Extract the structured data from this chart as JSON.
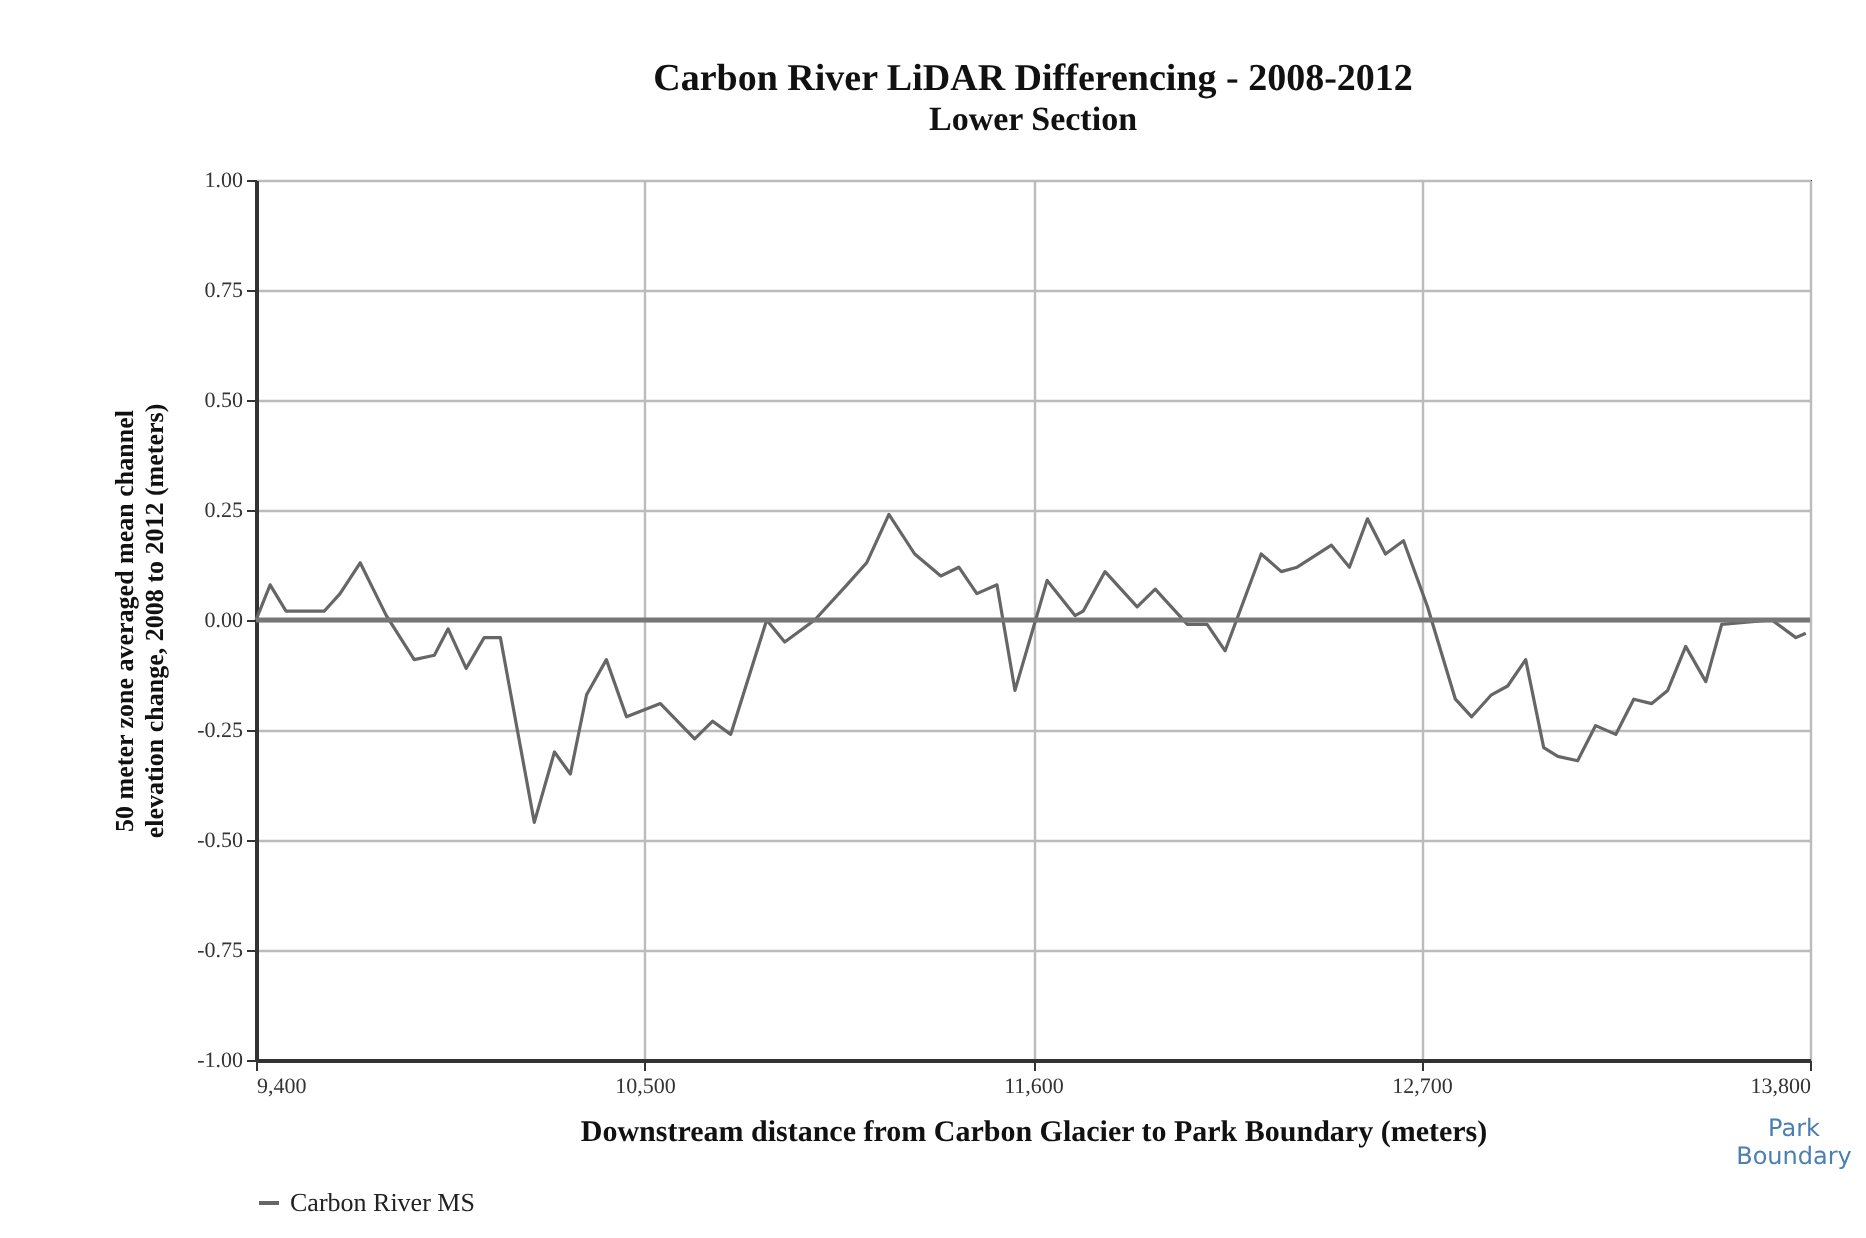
{
  "chart_data": {
    "type": "line",
    "title": "Carbon River LiDAR Differencing - 2008-2012",
    "subtitle": "Lower Section",
    "xlabel": "Downstream distance from Carbon Glacier to Park Boundary (meters)",
    "ylabel": "50 meter zone averaged mean channel elevation change, 2008 to 2012 (meters)",
    "annotations": [
      "Park Boundary"
    ],
    "series": [
      {
        "name": "Carbon River MS",
        "color": "#666666",
        "x": [
          9400,
          9440,
          9485,
          9593,
          9638,
          9695,
          9769,
          9848,
          9905,
          9944,
          9995,
          10046,
          10092,
          10188,
          10245,
          10290,
          10336,
          10392,
          10449,
          10545,
          10642,
          10693,
          10744,
          10846,
          10897,
          10982,
          11073,
          11129,
          11192,
          11265,
          11339,
          11390,
          11441,
          11498,
          11549,
          11611,
          11640,
          11719,
          11742,
          11804,
          11895,
          11946,
          12037,
          12093,
          12144,
          12246,
          12303,
          12348,
          12445,
          12496,
          12547,
          12598,
          12649,
          12717,
          12796,
          12842,
          12898,
          12944,
          12995,
          13046,
          13086,
          13142,
          13193,
          13250,
          13301,
          13352,
          13397,
          13448,
          13505,
          13550,
          13692,
          13760,
          13788
        ],
        "values": [
          0.0,
          0.08,
          0.02,
          0.02,
          0.06,
          0.13,
          0.01,
          -0.09,
          -0.08,
          -0.02,
          -0.11,
          -0.04,
          -0.04,
          -0.46,
          -0.3,
          -0.35,
          -0.17,
          -0.09,
          -0.22,
          -0.19,
          -0.27,
          -0.23,
          -0.26,
          0.0,
          -0.05,
          0.0,
          0.08,
          0.13,
          0.24,
          0.15,
          0.1,
          0.12,
          0.06,
          0.08,
          -0.16,
          0.01,
          0.09,
          0.01,
          0.02,
          0.11,
          0.03,
          0.07,
          -0.01,
          -0.01,
          -0.07,
          0.15,
          0.11,
          0.12,
          0.17,
          0.12,
          0.23,
          0.15,
          0.18,
          0.03,
          -0.18,
          -0.22,
          -0.17,
          -0.15,
          -0.09,
          -0.29,
          -0.31,
          -0.32,
          -0.24,
          -0.26,
          -0.18,
          -0.19,
          -0.16,
          -0.06,
          -0.14,
          -0.01,
          0.0,
          -0.04,
          -0.03
        ]
      }
    ],
    "xlim": [
      9400,
      13800
    ],
    "xticks": [
      {
        "value": 9400,
        "label": "9,400"
      },
      {
        "value": 10500,
        "label": "10,500"
      },
      {
        "value": 11600,
        "label": "11,600"
      },
      {
        "value": 12700,
        "label": "12,700"
      },
      {
        "value": 13800,
        "label": "13,800"
      }
    ],
    "ylim": [
      -1,
      1
    ],
    "yticks": [
      {
        "value": -1,
        "label": "-1.00"
      },
      {
        "value": -0.75,
        "label": "-0.75"
      },
      {
        "value": -0.5,
        "label": "-0.50"
      },
      {
        "value": -0.25,
        "label": "-0.25"
      },
      {
        "value": 0,
        "label": "0.00"
      },
      {
        "value": 0.25,
        "label": "0.25"
      },
      {
        "value": 0.5,
        "label": "0.50"
      },
      {
        "value": 0.75,
        "label": "0.75"
      },
      {
        "value": 1,
        "label": "1.00"
      }
    ],
    "ref_lines": [
      {
        "axis": "y",
        "value": 0,
        "color": "#777777"
      }
    ],
    "grid": true,
    "legend": "bottom",
    "marker": "none",
    "line_style": "solid"
  }
}
